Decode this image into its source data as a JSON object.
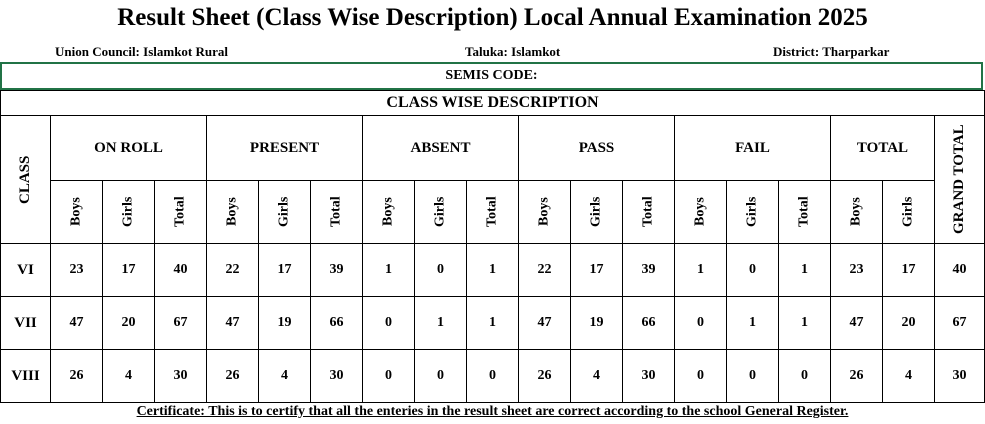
{
  "header": {
    "title": "Result Sheet (Class Wise Description) Local Annual Examination 2025",
    "union_council_label": "Union Council:",
    "union_council": "Islamkot Rural",
    "taluka_label": "Taluka:",
    "taluka": "Islamkot",
    "district_label": "District:",
    "district": "Tharparkar",
    "semis_code_label": "SEMIS CODE:"
  },
  "table": {
    "caption": "CLASS WISE DESCRIPTION",
    "class_header": "CLASS",
    "groups": [
      {
        "name": "ON ROLL",
        "sub": [
          "Boys",
          "Girls",
          "Total"
        ]
      },
      {
        "name": "PRESENT",
        "sub": [
          "Boys",
          "Girls",
          "Total"
        ]
      },
      {
        "name": "ABSENT",
        "sub": [
          "Boys",
          "Girls",
          "Total"
        ]
      },
      {
        "name": "PASS",
        "sub": [
          "Boys",
          "Girls",
          "Total"
        ]
      },
      {
        "name": "FAIL",
        "sub": [
          "Boys",
          "Girls",
          "Total"
        ]
      },
      {
        "name": "TOTAL",
        "sub": [
          "Boys",
          "Girls"
        ]
      }
    ],
    "grand_total_header": "GRAND TOTAL",
    "rows": [
      {
        "class": "VI",
        "cells": [
          23,
          17,
          40,
          22,
          17,
          39,
          1,
          0,
          1,
          22,
          17,
          39,
          1,
          0,
          1,
          23,
          17,
          40
        ]
      },
      {
        "class": "VII",
        "cells": [
          47,
          20,
          67,
          47,
          19,
          66,
          0,
          1,
          1,
          47,
          19,
          66,
          0,
          1,
          1,
          47,
          20,
          67
        ]
      },
      {
        "class": "VIII",
        "cells": [
          26,
          4,
          30,
          26,
          4,
          30,
          0,
          0,
          0,
          26,
          4,
          30,
          0,
          0,
          0,
          26,
          4,
          30
        ]
      }
    ]
  },
  "footer": {
    "certificate": "Certificate: This is to certify that all the enteries in the result sheet are correct according to the school General Register."
  }
}
